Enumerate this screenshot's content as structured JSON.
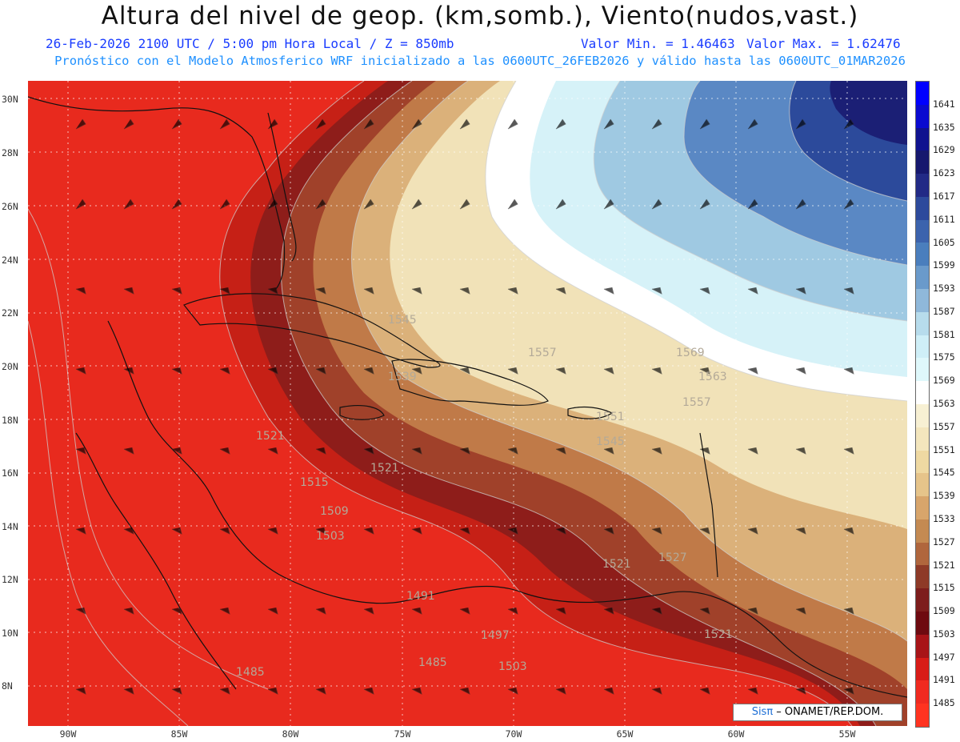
{
  "header": {
    "title": "Altura del nivel de geop. (km,somb.), Viento(nudos,vast.)",
    "date_time": "26-Feb-2026  2100 UTC / 5:00 pm Hora Local / Z = 850mb",
    "val_min": "Valor Min. = 1.46463",
    "val_max": "Valor Max. = 1.62476",
    "forecast_line": "Pronóstico con el Modelo Atmosferico WRF inicializado a las 0600UTC_26FEB2026 y válido hasta las  0600UTC_01MAR2026"
  },
  "map": {
    "lat_labels": [
      "30N",
      "28N",
      "26N",
      "24N",
      "22N",
      "20N",
      "18N",
      "16N",
      "14N",
      "12N",
      "10N",
      "8N"
    ],
    "lon_labels": [
      "90W",
      "85W",
      "80W",
      "75W",
      "70W",
      "65W",
      "60W",
      "55W"
    ],
    "contour_labels": [
      "1545",
      "1557",
      "1569",
      "1563",
      "1539",
      "1557",
      "1551",
      "1545",
      "1521",
      "1521",
      "1515",
      "1509",
      "1503",
      "1527",
      "1491",
      "1497",
      "1485",
      "1485",
      "1503",
      "1521",
      "1521"
    ]
  },
  "colorbar": {
    "labels": [
      "1641",
      "1635",
      "1629",
      "1623",
      "1617",
      "1611",
      "1605",
      "1599",
      "1593",
      "1587",
      "1581",
      "1575",
      "1569",
      "1563",
      "1557",
      "1551",
      "1545",
      "1539",
      "1533",
      "1527",
      "1521",
      "1515",
      "1509",
      "1503",
      "1497",
      "1491",
      "1485"
    ],
    "colors": [
      "#0000ff",
      "#0a0ad0",
      "#10128f",
      "#16186e",
      "#222a86",
      "#2d4a9c",
      "#3c63ad",
      "#4a7ebd",
      "#6a9acb",
      "#8fb8da",
      "#b7dcec",
      "#cfeff7",
      "#dff8fb",
      "#ffffff",
      "#f7f0d3",
      "#f3e6bd",
      "#efd9a2",
      "#e6c48a",
      "#d8a56b",
      "#c48a52",
      "#b0663d",
      "#8e3a27",
      "#7d1d1c",
      "#6e0a10",
      "#a81418",
      "#d81c18",
      "#f02a20",
      "#ff3320"
    ]
  },
  "credit": {
    "brand": "Sisπ",
    "rest": " – ONAMET/REP.DOM."
  }
}
